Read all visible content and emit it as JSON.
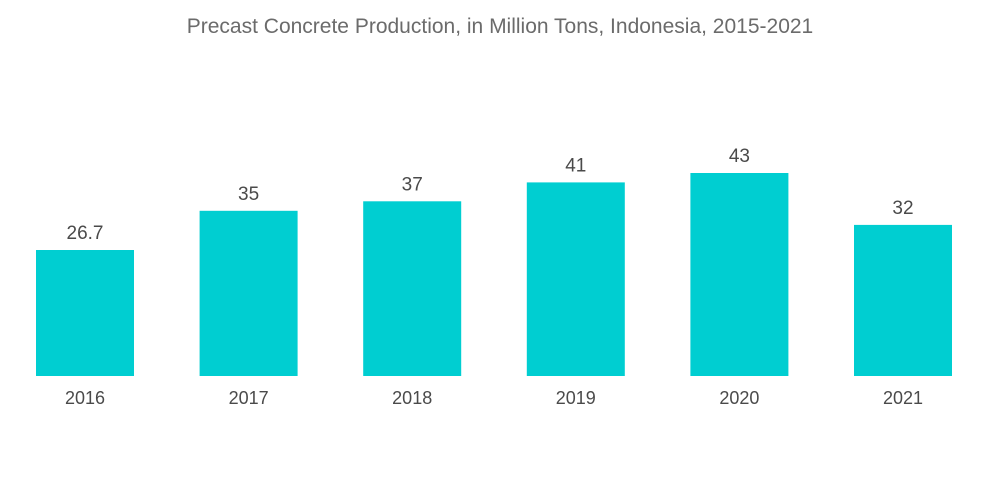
{
  "chart_data": {
    "type": "bar",
    "title": "Precast Concrete Production, in Million Tons, Indonesia, 2015-2021",
    "categories": [
      "2016",
      "2017",
      "2018",
      "2019",
      "2020",
      "2021"
    ],
    "values": [
      26.7,
      35,
      37,
      41,
      43,
      32
    ],
    "value_labels": [
      "26.7",
      "35",
      "37",
      "41",
      "43",
      "32"
    ],
    "xlabel": "",
    "ylabel": "",
    "ylim": [
      0,
      45
    ],
    "grid": false,
    "legend": "none",
    "bar_color": "#00ced1"
  }
}
